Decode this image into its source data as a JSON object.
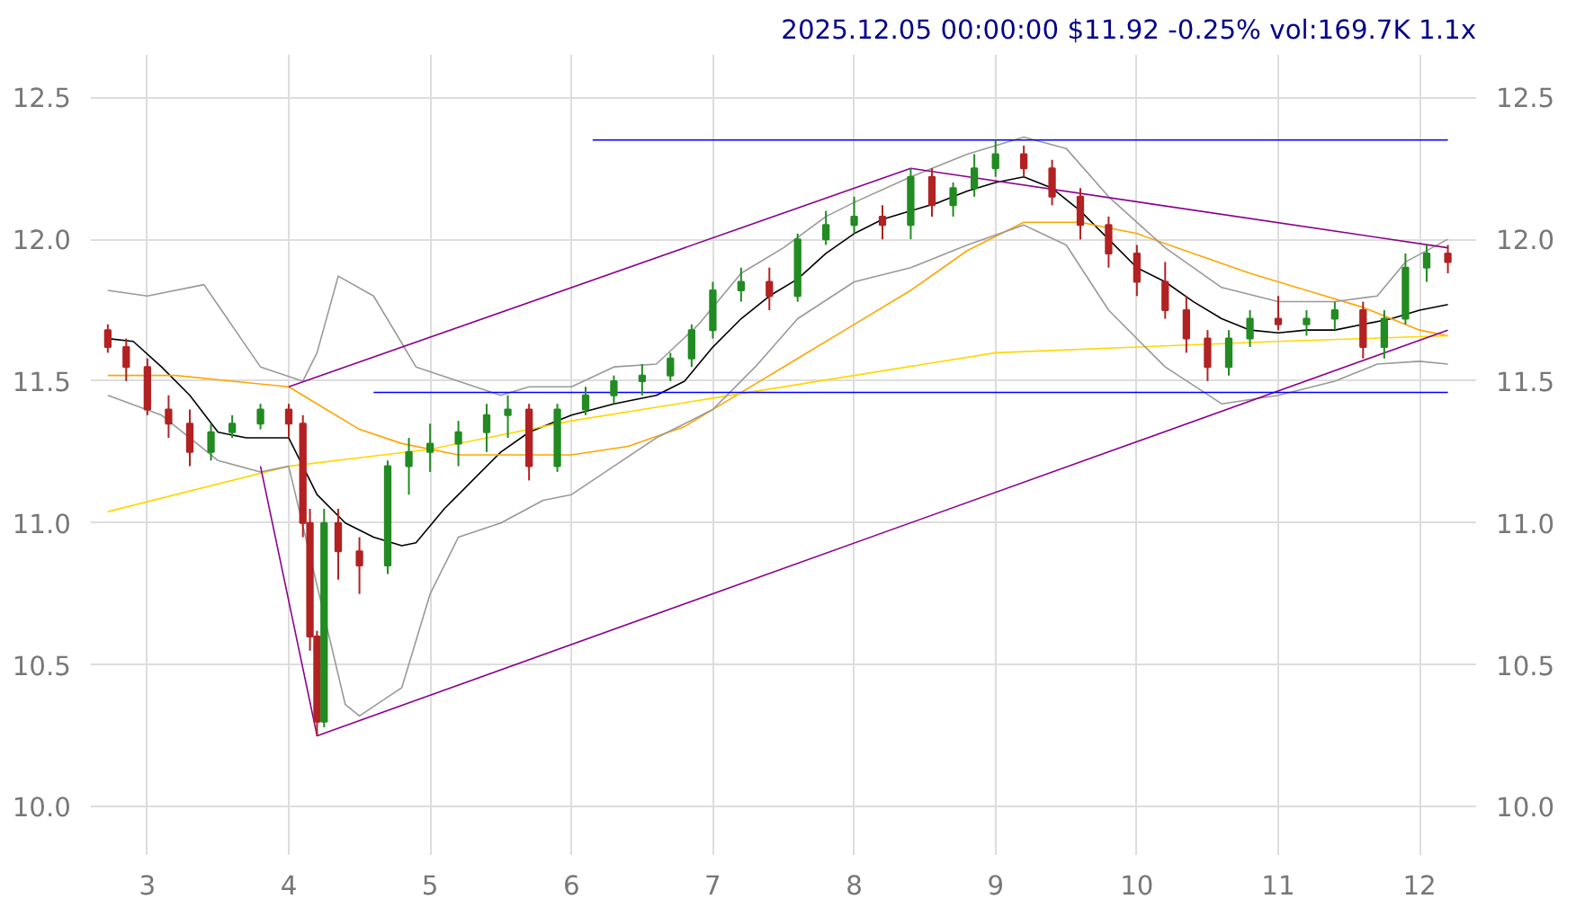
{
  "chart_data": {
    "type": "candlestick",
    "title": "2025.12.05 00:00:00 $11.92 -0.25% vol:169.7K 1.1x",
    "x": [
      2.72,
      2.85,
      3.0,
      3.15,
      3.3,
      3.45,
      3.6,
      3.8,
      4.0,
      4.1,
      4.15,
      4.2,
      4.25,
      4.35,
      4.5,
      4.7,
      4.85,
      5.0,
      5.2,
      5.4,
      5.55,
      5.7,
      5.9,
      6.1,
      6.3,
      6.5,
      6.7,
      6.85,
      7.0,
      7.2,
      7.4,
      7.6,
      7.8,
      8.0,
      8.2,
      8.4,
      8.55,
      8.7,
      8.85,
      9.0,
      9.2,
      9.4,
      9.6,
      9.8,
      10.0,
      10.2,
      10.35,
      10.5,
      10.65,
      10.8,
      11.0,
      11.2,
      11.4,
      11.6,
      11.75,
      11.9,
      12.05,
      12.2
    ],
    "ohlc": [
      [
        11.68,
        11.7,
        11.6,
        11.62
      ],
      [
        11.62,
        11.65,
        11.5,
        11.55
      ],
      [
        11.55,
        11.58,
        11.38,
        11.4
      ],
      [
        11.4,
        11.45,
        11.3,
        11.35
      ],
      [
        11.35,
        11.4,
        11.2,
        11.25
      ],
      [
        11.25,
        11.35,
        11.22,
        11.32
      ],
      [
        11.32,
        11.38,
        11.3,
        11.35
      ],
      [
        11.35,
        11.42,
        11.33,
        11.4
      ],
      [
        11.4,
        11.42,
        11.3,
        11.35
      ],
      [
        11.35,
        11.38,
        10.95,
        11.0
      ],
      [
        11.0,
        11.05,
        10.55,
        10.6
      ],
      [
        10.6,
        10.62,
        10.25,
        10.3
      ],
      [
        10.3,
        11.05,
        10.28,
        11.0
      ],
      [
        11.0,
        11.05,
        10.8,
        10.9
      ],
      [
        10.9,
        10.95,
        10.75,
        10.85
      ],
      [
        10.85,
        11.22,
        10.82,
        11.2
      ],
      [
        11.2,
        11.3,
        11.1,
        11.25
      ],
      [
        11.25,
        11.35,
        11.18,
        11.28
      ],
      [
        11.28,
        11.36,
        11.2,
        11.32
      ],
      [
        11.32,
        11.42,
        11.25,
        11.38
      ],
      [
        11.38,
        11.45,
        11.3,
        11.4
      ],
      [
        11.4,
        11.42,
        11.15,
        11.2
      ],
      [
        11.2,
        11.42,
        11.18,
        11.4
      ],
      [
        11.4,
        11.48,
        11.38,
        11.45
      ],
      [
        11.45,
        11.52,
        11.42,
        11.5
      ],
      [
        11.5,
        11.56,
        11.45,
        11.52
      ],
      [
        11.52,
        11.6,
        11.5,
        11.58
      ],
      [
        11.58,
        11.7,
        11.55,
        11.68
      ],
      [
        11.68,
        11.85,
        11.65,
        11.82
      ],
      [
        11.82,
        11.9,
        11.78,
        11.85
      ],
      [
        11.85,
        11.9,
        11.75,
        11.8
      ],
      [
        11.8,
        12.02,
        11.78,
        12.0
      ],
      [
        12.0,
        12.1,
        11.98,
        12.05
      ],
      [
        12.05,
        12.15,
        12.02,
        12.08
      ],
      [
        12.08,
        12.12,
        12.0,
        12.05
      ],
      [
        12.05,
        12.25,
        12.0,
        12.22
      ],
      [
        12.22,
        12.25,
        12.08,
        12.12
      ],
      [
        12.12,
        12.2,
        12.08,
        12.18
      ],
      [
        12.18,
        12.3,
        12.15,
        12.25
      ],
      [
        12.25,
        12.35,
        12.22,
        12.3
      ],
      [
        12.3,
        12.33,
        12.22,
        12.25
      ],
      [
        12.25,
        12.28,
        12.12,
        12.15
      ],
      [
        12.15,
        12.18,
        12.0,
        12.05
      ],
      [
        12.05,
        12.08,
        11.9,
        11.95
      ],
      [
        11.95,
        11.98,
        11.8,
        11.85
      ],
      [
        11.85,
        11.92,
        11.72,
        11.75
      ],
      [
        11.75,
        11.8,
        11.6,
        11.65
      ],
      [
        11.65,
        11.68,
        11.5,
        11.55
      ],
      [
        11.55,
        11.68,
        11.52,
        11.65
      ],
      [
        11.65,
        11.75,
        11.62,
        11.72
      ],
      [
        11.72,
        11.8,
        11.68,
        11.7
      ],
      [
        11.7,
        11.75,
        11.66,
        11.72
      ],
      [
        11.72,
        11.78,
        11.68,
        11.75
      ],
      [
        11.75,
        11.78,
        11.58,
        11.62
      ],
      [
        11.62,
        11.75,
        11.58,
        11.72
      ],
      [
        11.72,
        11.95,
        11.7,
        11.9
      ],
      [
        11.9,
        11.98,
        11.85,
        11.95
      ],
      [
        11.95,
        11.98,
        11.88,
        11.92
      ]
    ],
    "series": [
      {
        "type": "line",
        "color": "#000000",
        "x": [
          2.72,
          2.9,
          3.1,
          3.3,
          3.5,
          3.7,
          4.0,
          4.2,
          4.4,
          4.6,
          4.8,
          4.9,
          5.1,
          5.3,
          5.5,
          5.7,
          6.0,
          6.3,
          6.6,
          6.8,
          7.0,
          7.2,
          7.4,
          7.6,
          7.8,
          8.0,
          8.2,
          8.4,
          8.6,
          8.8,
          9.0,
          9.2,
          9.4,
          9.6,
          9.8,
          10.0,
          10.2,
          10.4,
          10.6,
          10.8,
          11.0,
          11.2,
          11.4,
          11.6,
          11.8,
          12.0,
          12.2
        ],
        "values": [
          11.65,
          11.64,
          11.55,
          11.45,
          11.32,
          11.3,
          11.3,
          11.1,
          11.0,
          10.95,
          10.92,
          10.93,
          11.05,
          11.15,
          11.25,
          11.32,
          11.38,
          11.42,
          11.45,
          11.5,
          11.62,
          11.72,
          11.8,
          11.86,
          11.95,
          12.02,
          12.07,
          12.1,
          12.13,
          12.17,
          12.2,
          12.22,
          12.18,
          12.1,
          12.0,
          11.9,
          11.85,
          11.78,
          11.72,
          11.68,
          11.67,
          11.68,
          11.68,
          11.7,
          11.72,
          11.75,
          11.77
        ]
      },
      {
        "type": "line",
        "color": "#ffa500",
        "x": [
          2.72,
          3.2,
          3.6,
          4.0,
          4.2,
          4.5,
          4.8,
          5.2,
          5.6,
          6.0,
          6.4,
          6.8,
          7.2,
          7.6,
          8.0,
          8.4,
          8.8,
          9.2,
          9.6,
          10.0,
          10.4,
          10.8,
          11.2,
          11.6,
          12.0,
          12.2
        ],
        "values": [
          11.52,
          11.52,
          11.5,
          11.48,
          11.42,
          11.33,
          11.28,
          11.24,
          11.24,
          11.24,
          11.27,
          11.34,
          11.46,
          11.58,
          11.7,
          11.82,
          11.96,
          12.06,
          12.06,
          12.02,
          11.95,
          11.88,
          11.82,
          11.76,
          11.68,
          11.66
        ]
      },
      {
        "type": "line",
        "color": "#ffd700",
        "x": [
          2.72,
          4.0,
          5.0,
          6.0,
          7.0,
          8.0,
          9.0,
          10.0,
          11.0,
          12.2
        ],
        "values": [
          11.04,
          11.2,
          11.26,
          11.36,
          11.44,
          11.52,
          11.6,
          11.62,
          11.64,
          11.66
        ]
      },
      {
        "type": "line",
        "color": "#999999",
        "x": [
          2.72,
          3.0,
          3.4,
          3.8,
          4.1,
          4.2,
          4.35,
          4.6,
          4.9,
          5.2,
          5.5,
          5.7,
          6.0,
          6.3,
          6.6,
          6.9,
          7.2,
          7.5,
          7.8,
          8.0,
          8.4,
          8.8,
          9.2,
          9.5,
          9.8,
          10.2,
          10.6,
          11.0,
          11.4,
          11.7,
          11.9,
          12.2
        ],
        "values": [
          11.82,
          11.8,
          11.84,
          11.55,
          11.5,
          11.6,
          11.87,
          11.8,
          11.55,
          11.5,
          11.45,
          11.48,
          11.48,
          11.55,
          11.56,
          11.7,
          11.88,
          11.97,
          12.08,
          12.13,
          12.22,
          12.3,
          12.36,
          12.32,
          12.15,
          11.97,
          11.83,
          11.78,
          11.78,
          11.8,
          11.92,
          12.0
        ]
      },
      {
        "type": "line",
        "color": "#999999",
        "x": [
          2.72,
          3.1,
          3.5,
          3.8,
          4.0,
          4.4,
          4.5,
          4.8,
          5.0,
          5.2,
          5.5,
          5.8,
          6.0,
          6.3,
          6.6,
          7.0,
          7.3,
          7.6,
          8.0,
          8.4,
          8.8,
          9.2,
          9.5,
          9.8,
          10.2,
          10.6,
          11.0,
          11.4,
          11.7,
          12.0,
          12.2
        ],
        "values": [
          11.45,
          11.38,
          11.22,
          11.18,
          11.2,
          10.36,
          10.32,
          10.42,
          10.75,
          10.95,
          11.0,
          11.08,
          11.1,
          11.2,
          11.3,
          11.4,
          11.55,
          11.72,
          11.85,
          11.9,
          11.98,
          12.05,
          11.98,
          11.75,
          11.55,
          11.42,
          11.45,
          11.5,
          11.56,
          11.57,
          11.56
        ]
      },
      {
        "type": "line",
        "color": "#8b008b",
        "x": [
          4.0,
          8.4,
          12.2
        ],
        "values": [
          11.48,
          12.25,
          11.97
        ]
      },
      {
        "type": "line",
        "color": "#8b008b",
        "x": [
          3.8,
          4.2,
          12.2
        ],
        "values": [
          11.2,
          10.25,
          11.68
        ]
      },
      {
        "type": "line",
        "color": "#0000ff",
        "x": [
          6.15,
          12.2
        ],
        "values": [
          12.35,
          12.35
        ]
      },
      {
        "type": "line",
        "color": "#0000ff",
        "x": [
          4.6,
          12.2
        ],
        "values": [
          11.46,
          11.46
        ]
      }
    ],
    "xlim": [
      2.6,
      12.4
    ],
    "xticks": [
      3,
      4,
      5,
      6,
      7,
      8,
      9,
      10,
      11,
      12
    ],
    "ylim": [
      9.83,
      12.65
    ],
    "yticks": [
      {
        "value": 10,
        "label": "10.0"
      },
      10.5,
      {
        "value": 11,
        "label": "11.0"
      },
      11.5,
      {
        "value": 12,
        "label": "12.0"
      },
      12.5
    ],
    "y2lim": [
      9.83,
      12.65
    ],
    "y2ticks": [
      {
        "value": 10,
        "label": "10.0"
      },
      10.5,
      {
        "value": 11,
        "label": "11.0"
      },
      11.5,
      {
        "value": 12,
        "label": "12.0"
      },
      12.5
    ],
    "grid": true
  }
}
